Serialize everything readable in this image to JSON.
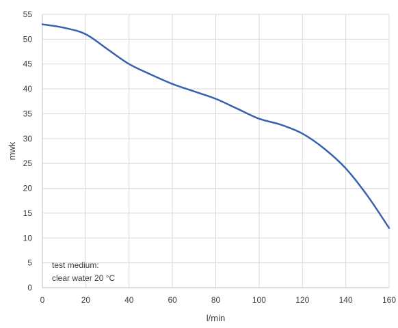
{
  "chart_data": {
    "type": "line",
    "title": "",
    "xlabel": "l/min",
    "ylabel": "mwk",
    "xlim": [
      0,
      160
    ],
    "ylim": [
      0,
      55
    ],
    "xticks": [
      0,
      20,
      40,
      60,
      80,
      100,
      120,
      140,
      160
    ],
    "yticks": [
      0,
      5,
      10,
      15,
      20,
      25,
      30,
      35,
      40,
      45,
      50,
      55
    ],
    "grid": true,
    "legend": "none",
    "annotation": [
      "test medium:",
      "clear water 20 °C"
    ],
    "series": [
      {
        "color": "#3561b0",
        "x": [
          0,
          10,
          20,
          30,
          40,
          50,
          60,
          70,
          80,
          90,
          100,
          110,
          120,
          130,
          140,
          150,
          160
        ],
        "y": [
          53,
          52.3,
          51,
          48,
          45,
          42.9,
          41,
          39.5,
          38,
          36,
          34,
          32.8,
          31,
          28,
          24,
          18.5,
          12
        ]
      }
    ]
  }
}
